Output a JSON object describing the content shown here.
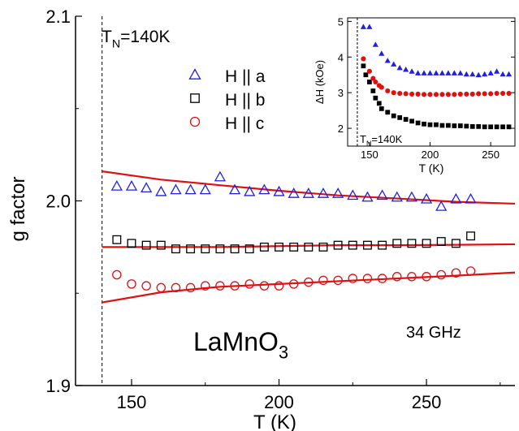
{
  "chart_data": [
    {
      "type": "scatter",
      "xlabel": "T (K)",
      "ylabel": "g factor",
      "xlim": [
        131,
        280
      ],
      "ylim": [
        1.9,
        2.1
      ],
      "x_ticks": [
        "150",
        "200",
        "250"
      ],
      "y_ticks": [
        "1.9",
        "2.0",
        "2.1"
      ],
      "annotations": {
        "tn_label_main": "T",
        "tn_label_sub": "N",
        "tn_label_rest": "=140K",
        "material_main": "LaMnO",
        "material_sub": "3",
        "frequency": "34 GHz"
      },
      "tn_line_x": 140,
      "legend": {
        "position": "top",
        "entries": [
          {
            "label": "H || a",
            "marker": "triangle",
            "color": "#2020e0"
          },
          {
            "label": "H || b",
            "marker": "square",
            "color": "#000000"
          },
          {
            "label": "H || c",
            "marker": "circle",
            "color": "#e01010"
          }
        ]
      },
      "series": [
        {
          "name": "H || a",
          "marker": "triangle",
          "color": "#2020e0",
          "x": [
            145,
            150,
            155,
            160,
            165,
            170,
            175,
            180,
            185,
            190,
            195,
            200,
            205,
            210,
            215,
            220,
            225,
            230,
            235,
            240,
            245,
            250,
            255,
            260,
            265
          ],
          "y": [
            2.008,
            2.008,
            2.007,
            2.005,
            2.006,
            2.006,
            2.006,
            2.013,
            2.006,
            2.005,
            2.006,
            2.005,
            2.004,
            2.004,
            2.004,
            2.004,
            2.003,
            2.002,
            2.003,
            2.002,
            2.002,
            2.001,
            1.997,
            2.001,
            2.001
          ]
        },
        {
          "name": "H || b",
          "marker": "square",
          "color": "#000000",
          "x": [
            145,
            150,
            155,
            160,
            165,
            170,
            175,
            180,
            185,
            190,
            195,
            200,
            205,
            210,
            215,
            220,
            225,
            230,
            235,
            240,
            245,
            250,
            255,
            260,
            265
          ],
          "y": [
            1.979,
            1.977,
            1.976,
            1.976,
            1.974,
            1.974,
            1.974,
            1.974,
            1.974,
            1.974,
            1.975,
            1.975,
            1.975,
            1.975,
            1.975,
            1.976,
            1.976,
            1.976,
            1.976,
            1.977,
            1.977,
            1.977,
            1.978,
            1.977,
            1.981
          ]
        },
        {
          "name": "H || c",
          "marker": "circle",
          "color": "#e01010",
          "x": [
            145,
            150,
            155,
            160,
            165,
            170,
            175,
            180,
            185,
            190,
            195,
            200,
            205,
            210,
            215,
            220,
            225,
            230,
            235,
            240,
            245,
            250,
            255,
            260,
            265
          ],
          "y": [
            1.96,
            1.955,
            1.954,
            1.953,
            1.953,
            1.953,
            1.954,
            1.954,
            1.954,
            1.955,
            1.954,
            1.954,
            1.955,
            1.956,
            1.957,
            1.957,
            1.958,
            1.958,
            1.958,
            1.959,
            1.959,
            1.959,
            1.96,
            1.961,
            1.962
          ]
        },
        {
          "name": "fit a",
          "type": "line",
          "color": "#e01010",
          "x": [
            140,
            160,
            180,
            200,
            220,
            240,
            260,
            280
          ],
          "y": [
            2.016,
            2.0115,
            2.0085,
            2.0055,
            2.003,
            2.0013,
            1.9995,
            1.9985
          ]
        },
        {
          "name": "fit b",
          "type": "line",
          "color": "#e01010",
          "x": [
            140,
            160,
            180,
            200,
            220,
            240,
            260,
            280
          ],
          "y": [
            1.975,
            1.975,
            1.975,
            1.9755,
            1.976,
            1.976,
            1.9762,
            1.9765
          ]
        },
        {
          "name": "fit c",
          "type": "line",
          "color": "#e01010",
          "x": [
            140,
            160,
            180,
            200,
            220,
            240,
            260,
            280
          ],
          "y": [
            1.945,
            1.9505,
            1.9535,
            1.955,
            1.9565,
            1.958,
            1.9595,
            1.9612
          ]
        }
      ]
    },
    {
      "type": "scatter",
      "xlabel": "T (K)",
      "ylabel": "ΔH (kOe)",
      "xlim": [
        132,
        270
      ],
      "ylim": [
        1.5,
        5.1
      ],
      "x_ticks": [
        "150",
        "200",
        "250"
      ],
      "y_ticks": [
        "2",
        "3",
        "4",
        "5"
      ],
      "annotations": {
        "tn_label_main": "T",
        "tn_label_sub": "N",
        "tn_label_rest": "=140K"
      },
      "tn_line_x": 140,
      "series": [
        {
          "name": "a",
          "marker": "triangle-filled",
          "color": "#2020e0",
          "x": [
            145,
            150,
            155,
            160,
            165,
            170,
            175,
            180,
            185,
            190,
            195,
            200,
            205,
            210,
            215,
            220,
            225,
            230,
            235,
            240,
            245,
            250,
            255,
            260,
            265
          ],
          "y": [
            4.85,
            4.85,
            4.35,
            4.1,
            3.9,
            3.8,
            3.7,
            3.65,
            3.6,
            3.55,
            3.55,
            3.55,
            3.55,
            3.55,
            3.55,
            3.55,
            3.55,
            3.52,
            3.52,
            3.5,
            3.52,
            3.55,
            3.6,
            3.52,
            3.52
          ]
        },
        {
          "name": "b",
          "marker": "square-filled",
          "color": "#000000",
          "x": [
            145,
            147,
            150,
            153,
            155,
            158,
            160,
            165,
            170,
            175,
            180,
            185,
            190,
            195,
            200,
            205,
            210,
            215,
            220,
            225,
            230,
            235,
            240,
            245,
            250,
            255,
            260,
            265
          ],
          "y": [
            3.75,
            3.5,
            3.3,
            3.05,
            2.85,
            2.7,
            2.55,
            2.45,
            2.35,
            2.3,
            2.25,
            2.2,
            2.15,
            2.12,
            2.1,
            2.1,
            2.08,
            2.08,
            2.07,
            2.07,
            2.06,
            2.05,
            2.05,
            2.04,
            2.04,
            2.04,
            2.04,
            2.04
          ]
        },
        {
          "name": "c",
          "marker": "circle-filled",
          "color": "#e01010",
          "x": [
            145,
            150,
            153,
            155,
            158,
            160,
            165,
            170,
            175,
            180,
            185,
            190,
            195,
            200,
            205,
            210,
            215,
            220,
            225,
            230,
            235,
            240,
            245,
            250,
            255,
            260,
            265
          ],
          "y": [
            3.95,
            3.6,
            3.4,
            3.3,
            3.2,
            3.15,
            3.05,
            3.0,
            2.98,
            2.97,
            2.96,
            2.96,
            2.95,
            2.95,
            2.95,
            2.95,
            2.95,
            2.95,
            2.96,
            2.96,
            2.96,
            2.97,
            2.97,
            2.97,
            2.98,
            2.98,
            2.98
          ]
        }
      ]
    }
  ]
}
